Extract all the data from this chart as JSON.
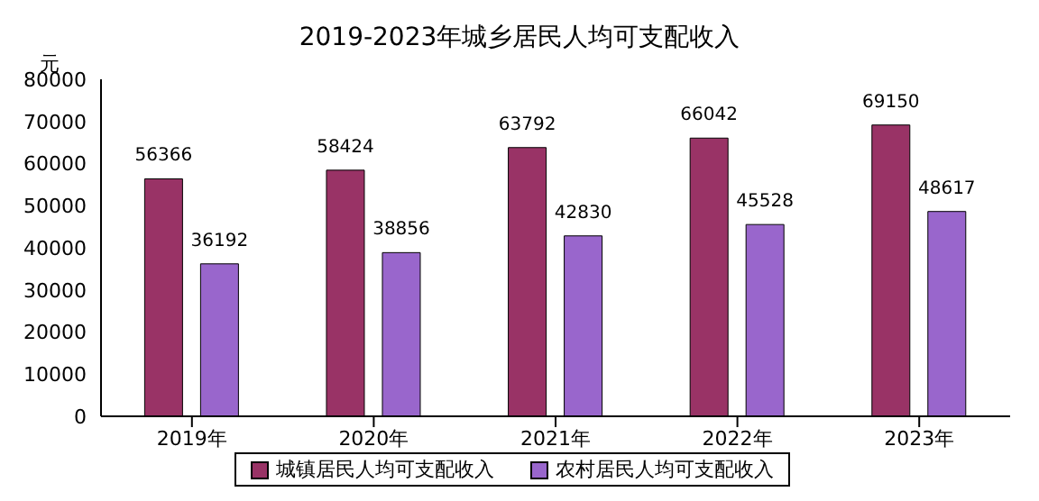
{
  "chart_data": {
    "type": "bar",
    "title": "2019-2023年城乡居民人均可支配收入",
    "ylabel": "元",
    "categories": [
      "2019年",
      "2020年",
      "2021年",
      "2022年",
      "2023年"
    ],
    "series": [
      {
        "name": "城镇居民人均可支配收入",
        "color": "#993366",
        "values": [
          56366,
          58424,
          63792,
          66042,
          69150
        ]
      },
      {
        "name": "农村居民人均可支配收入",
        "color": "#9966cc",
        "values": [
          36192,
          38856,
          42830,
          45528,
          48617
        ]
      }
    ],
    "ylim": [
      0,
      80000
    ],
    "yticks": [
      0,
      10000,
      20000,
      30000,
      40000,
      50000,
      60000,
      70000,
      80000
    ],
    "grid": false,
    "legend": "bottom",
    "data_labels": true
  }
}
